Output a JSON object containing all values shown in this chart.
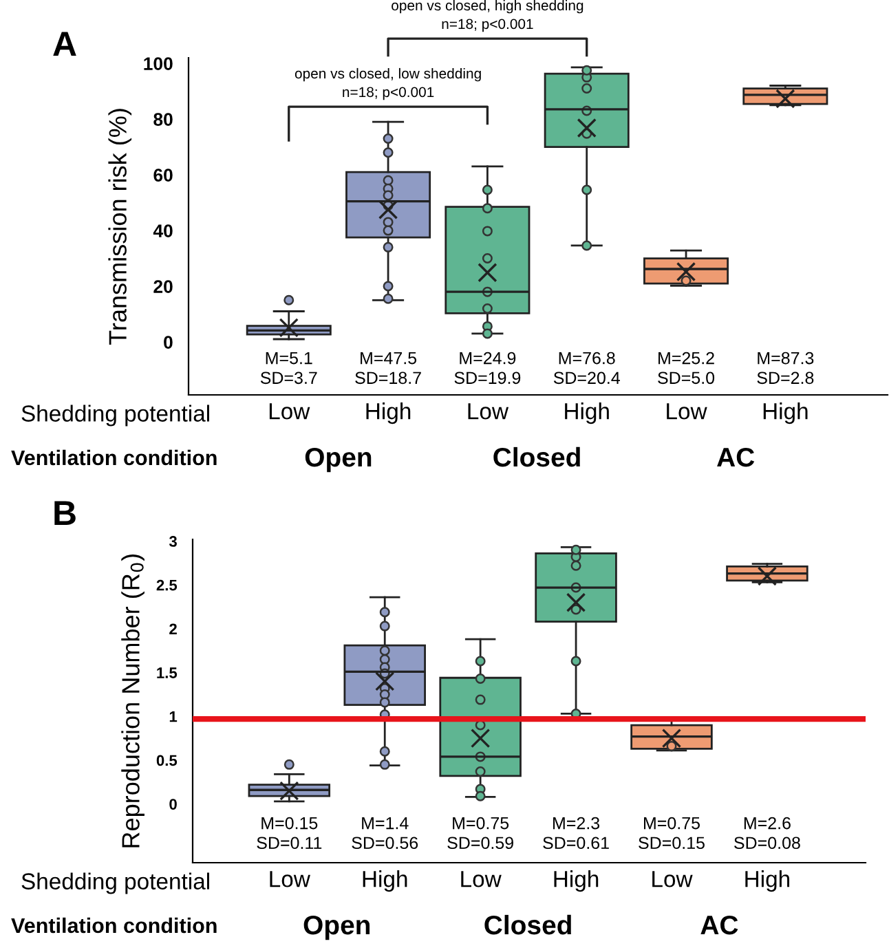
{
  "chart_data": [
    {
      "type": "box",
      "title": "A",
      "ylabel": "Transmission risk (%)",
      "categories": [
        "Low",
        "High",
        "Low",
        "High",
        "Low",
        "High"
      ],
      "colors": [
        "#8f9bc4",
        "#8f9bc4",
        "#5fb592",
        "#5fb592",
        "#ee9b72",
        "#ee9b72"
      ],
      "boxes": [
        {
          "low": 1,
          "q1": 2.7,
          "median": 4.1,
          "q3": 5.8,
          "high": 11,
          "mean": 5.1,
          "outliers": [
            15
          ]
        },
        {
          "low": 15,
          "q1": 37.5,
          "median": 50.5,
          "q3": 61,
          "high": 79,
          "mean": 47.5,
          "outliers": [
            73,
            68,
            58,
            55,
            52.6,
            49,
            43,
            40,
            34,
            20,
            15.5
          ]
        },
        {
          "low": 3,
          "q1": 10.3,
          "median": 18,
          "q3": 48.5,
          "high": 63,
          "mean": 24.9,
          "outliers": [
            54.6,
            48,
            39.8,
            30,
            18,
            12,
            5.6,
            3
          ]
        },
        {
          "low": 34.6,
          "q1": 70,
          "median": 83.5,
          "q3": 96.3,
          "high": 98.6,
          "mean": 76.8,
          "outliers": [
            34.6,
            54.6,
            74.8,
            83,
            91,
            95,
            97.5
          ]
        },
        {
          "low": 20.2,
          "q1": 21,
          "median": 26.2,
          "q3": 30,
          "high": 32.8,
          "mean": 25.2,
          "outliers": [
            22
          ]
        },
        {
          "low": 85,
          "q1": 85.4,
          "median": 88.7,
          "q3": 91,
          "high": 92,
          "mean": 87.3
        }
      ],
      "ylim": [
        -19,
        102
      ],
      "yticks": [
        0,
        20,
        40,
        60,
        80,
        100
      ],
      "annotations": [
        "open vs closed, low shedding\nn=18; p<0.001",
        "open vs closed, high shedding\nn=18; p<0.001",
        "M=5.1\nSD=3.7",
        "M=47.5\nSD=18.7",
        "M=24.9\nSD=19.9",
        "M=76.8\nSD=20.4",
        "M=25.2\nSD=5.0",
        "M=87.3\nSD=2.8",
        "Shedding potential",
        "Ventilation condition",
        "Open",
        "Closed",
        "AC"
      ]
    },
    {
      "type": "box",
      "title": "B",
      "ylabel": "Reproduction Number (R$_{0}$)",
      "categories": [
        "Low",
        "High",
        "Low",
        "High",
        "Low",
        "High"
      ],
      "colors": [
        "#8f9bc4",
        "#8f9bc4",
        "#5fb592",
        "#5fb592",
        "#ee9b72",
        "#ee9b72"
      ],
      "boxes": [
        {
          "low": 0.03,
          "q1": 0.09,
          "median": 0.16,
          "q3": 0.22,
          "high": 0.34,
          "mean": 0.15,
          "outliers": [
            0.45
          ]
        },
        {
          "low": 0.44,
          "q1": 1.13,
          "median": 1.51,
          "q3": 1.81,
          "high": 2.36,
          "mean": 1.4,
          "outliers": [
            2.19,
            2.03,
            1.75,
            1.65,
            1.56,
            1.49,
            1.32,
            1.25,
            1.16,
            1.02,
            0.6,
            0.45
          ]
        },
        {
          "low": 0.08,
          "q1": 0.32,
          "median": 0.54,
          "q3": 1.44,
          "high": 1.88,
          "mean": 0.75,
          "outliers": [
            1.63,
            1.43,
            1.19,
            0.9,
            0.54,
            0.37,
            0.17,
            0.09
          ]
        },
        {
          "low": 1.03,
          "q1": 2.08,
          "median": 2.47,
          "q3": 2.86,
          "high": 2.93,
          "mean": 2.3,
          "outliers": [
            1.03,
            1.63,
            2.22,
            2.47,
            2.72,
            2.82,
            2.9
          ]
        },
        {
          "low": 0.61,
          "q1": 0.63,
          "median": 0.77,
          "q3": 0.9,
          "high": 0.95,
          "mean": 0.75,
          "outliers": [
            0.66
          ]
        },
        {
          "low": 2.53,
          "q1": 2.55,
          "median": 2.63,
          "q3": 2.71,
          "high": 2.74,
          "mean": 2.6
        }
      ],
      "ylim": [
        -0.67,
        3.02
      ],
      "yticks": [
        0,
        0.5,
        1,
        1.5,
        2,
        2.5,
        3
      ],
      "ref_lines": [
        {
          "axis": "y",
          "value": 0.97,
          "color": "#e8141b"
        }
      ],
      "annotations": [
        "M=0.15\nSD=0.11",
        "M=1.4\nSD=0.56",
        "M=0.75\nSD=0.59",
        "M=2.3\nSD=0.61",
        "M=0.75\nSD=0.15",
        "M=2.6\nSD=0.08",
        "Shedding potential",
        "Ventilation condition",
        "Open",
        "Closed",
        "AC"
      ]
    }
  ]
}
